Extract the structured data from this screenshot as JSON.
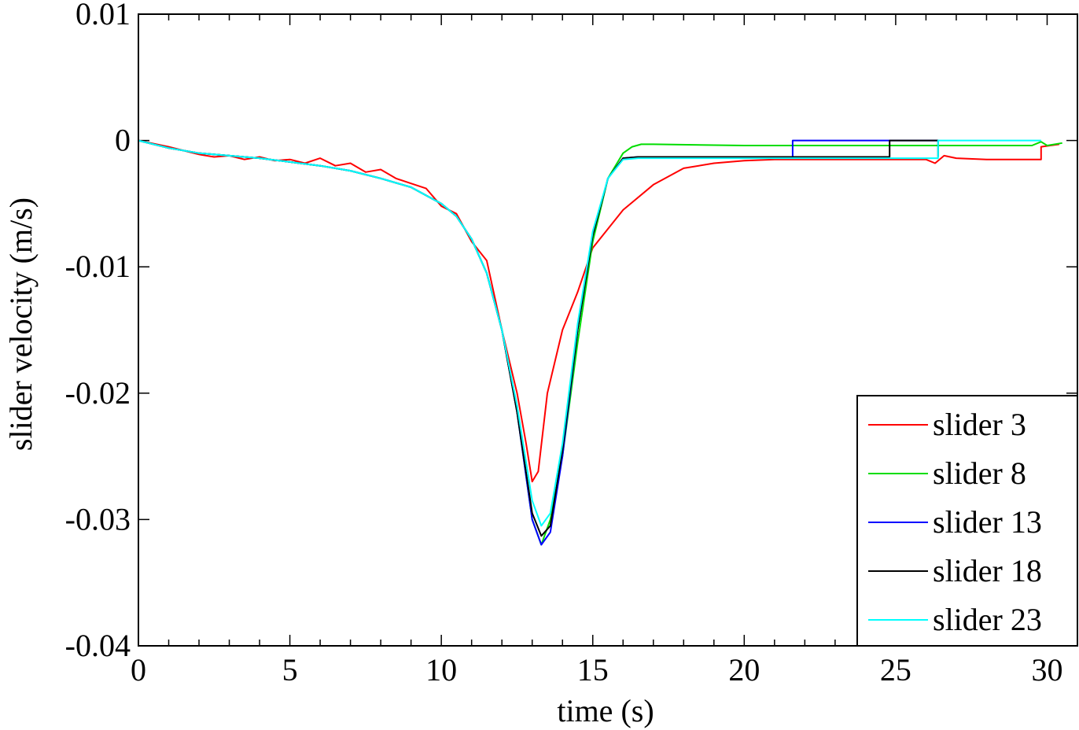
{
  "chart_data": {
    "type": "line",
    "xlabel": "time (s)",
    "ylabel": "slider velocity (m/s)",
    "xlim": [
      0,
      31
    ],
    "ylim": [
      -0.04,
      0.01
    ],
    "xticks": [
      0,
      5,
      10,
      15,
      20,
      25,
      30
    ],
    "yticks": [
      0.01,
      0,
      -0.01,
      -0.02,
      -0.03,
      -0.04
    ],
    "xtick_labels": [
      "0",
      "5",
      "10",
      "15",
      "20",
      "25",
      "30"
    ],
    "ytick_labels": [
      "0.01",
      "0",
      "-0.01",
      "-0.02",
      "-0.03",
      "-0.04"
    ],
    "grid": false,
    "legend_position": "lower-right",
    "series": [
      {
        "name": "slider 3",
        "color": "#ff0000",
        "x": [
          0,
          1,
          2,
          2.5,
          3,
          3.5,
          4,
          4.5,
          5,
          5.5,
          6,
          6.5,
          7,
          7.5,
          8,
          8.5,
          9,
          9.5,
          10,
          10.5,
          11,
          11.5,
          12,
          12.5,
          12.8,
          13.0,
          13.2,
          13.5,
          14,
          14.5,
          15,
          15.5,
          16,
          17,
          18,
          19,
          20,
          21,
          22,
          23,
          24,
          25,
          26,
          26.3,
          26.6,
          27,
          28,
          29,
          29.8,
          29.8,
          30.4
        ],
        "y": [
          0,
          -0.0005,
          -0.0011,
          -0.0013,
          -0.0012,
          -0.0015,
          -0.0013,
          -0.0016,
          -0.0015,
          -0.0018,
          -0.0014,
          -0.002,
          -0.0018,
          -0.0025,
          -0.0023,
          -0.003,
          -0.0034,
          -0.0038,
          -0.0052,
          -0.0058,
          -0.008,
          -0.0095,
          -0.015,
          -0.02,
          -0.024,
          -0.027,
          -0.0262,
          -0.02,
          -0.015,
          -0.012,
          -0.0085,
          -0.007,
          -0.0055,
          -0.0035,
          -0.0022,
          -0.0018,
          -0.0016,
          -0.0015,
          -0.0015,
          -0.0015,
          -0.0015,
          -0.0015,
          -0.0015,
          -0.0018,
          -0.0012,
          -0.0014,
          -0.0015,
          -0.0015,
          -0.0015,
          -0.0005,
          -0.0003
        ]
      },
      {
        "name": "slider 8",
        "color": "#00dd00",
        "x": [
          0,
          1,
          2,
          3,
          4,
          5,
          6,
          7,
          8,
          9,
          10,
          10.5,
          11,
          11.5,
          12,
          12.5,
          13.0,
          13.3,
          13.6,
          14,
          14.5,
          15,
          15.5,
          16,
          16.3,
          16.6,
          17,
          20,
          25,
          29.5,
          29.8,
          30,
          30.5
        ],
        "y": [
          0,
          -0.0006,
          -0.001,
          -0.0012,
          -0.0014,
          -0.0017,
          -0.002,
          -0.0024,
          -0.003,
          -0.0037,
          -0.005,
          -0.006,
          -0.0078,
          -0.0105,
          -0.015,
          -0.0215,
          -0.03,
          -0.032,
          -0.03,
          -0.025,
          -0.016,
          -0.008,
          -0.003,
          -0.001,
          -0.0005,
          -0.0003,
          -0.0003,
          -0.0004,
          -0.0004,
          -0.0004,
          -0.0001,
          -0.0004,
          -0.0002
        ]
      },
      {
        "name": "slider 13",
        "color": "#0000ff",
        "x": [
          0,
          1,
          2,
          3,
          4,
          5,
          6,
          7,
          8,
          9,
          10,
          10.5,
          11,
          11.5,
          12,
          12.5,
          13.0,
          13.3,
          13.6,
          14,
          14.5,
          15,
          15.5,
          16,
          16.5,
          17,
          18.2,
          21.6,
          21.6,
          25,
          26.4
        ],
        "y": [
          0,
          -0.0006,
          -0.001,
          -0.0012,
          -0.0014,
          -0.0017,
          -0.002,
          -0.0024,
          -0.003,
          -0.0037,
          -0.005,
          -0.006,
          -0.0078,
          -0.0105,
          -0.015,
          -0.0215,
          -0.03,
          -0.032,
          -0.031,
          -0.025,
          -0.015,
          -0.0075,
          -0.003,
          -0.0014,
          -0.0013,
          -0.0013,
          -0.0013,
          -0.0013,
          0,
          0,
          0
        ]
      },
      {
        "name": "slider 18",
        "color": "#000000",
        "x": [
          0,
          1,
          2,
          3,
          4,
          5,
          6,
          7,
          8,
          9,
          10,
          10.5,
          11,
          11.5,
          12,
          12.5,
          13.0,
          13.3,
          13.6,
          14,
          14.5,
          15,
          15.5,
          16,
          16.5,
          17,
          20,
          24.8,
          24.8,
          26.4,
          26.4
        ],
        "y": [
          0,
          -0.0006,
          -0.001,
          -0.0012,
          -0.0014,
          -0.0017,
          -0.002,
          -0.0024,
          -0.003,
          -0.0037,
          -0.005,
          -0.006,
          -0.0078,
          -0.0105,
          -0.015,
          -0.0215,
          -0.0295,
          -0.0313,
          -0.0305,
          -0.0245,
          -0.015,
          -0.0075,
          -0.003,
          -0.0014,
          -0.0013,
          -0.0013,
          -0.0013,
          -0.0013,
          0,
          0,
          -0.0013
        ]
      },
      {
        "name": "slider 23",
        "color": "#00ffff",
        "x": [
          0,
          1,
          2,
          3,
          4,
          5,
          6,
          7,
          8,
          9,
          10,
          10.5,
          11,
          11.5,
          12,
          12.5,
          13.0,
          13.3,
          13.6,
          14,
          14.5,
          15,
          15.5,
          16,
          16.5,
          17,
          20,
          26.4,
          26.4,
          29.8
        ],
        "y": [
          0,
          -0.0006,
          -0.001,
          -0.0012,
          -0.0014,
          -0.0017,
          -0.002,
          -0.0024,
          -0.003,
          -0.0037,
          -0.005,
          -0.006,
          -0.0078,
          -0.0105,
          -0.015,
          -0.021,
          -0.0285,
          -0.0305,
          -0.0295,
          -0.024,
          -0.0145,
          -0.0072,
          -0.003,
          -0.0015,
          -0.0014,
          -0.0014,
          -0.0014,
          -0.0014,
          0,
          0
        ]
      }
    ]
  }
}
